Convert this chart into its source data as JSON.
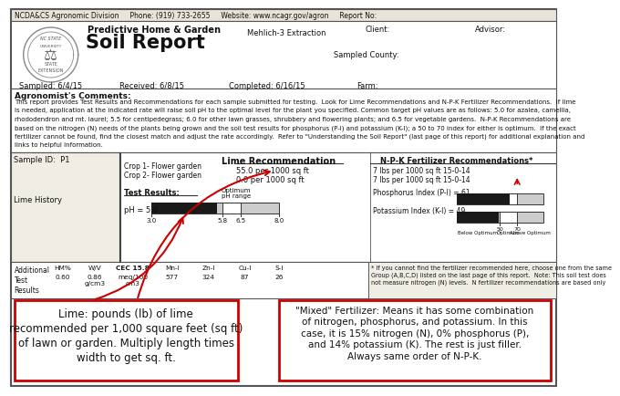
{
  "header_text": "NCDA&CS Agronomic Division     Phone: (919) 733-2655     Website: www.ncagr.gov/agron     Report No:",
  "title_sub": "Predictive Home & Garden",
  "title_main": "Soil Report",
  "extraction": "Mehlich-3 Extraction",
  "client": "Client:",
  "advisor": "Advisor:",
  "sampled_county": "Sampled County:",
  "sampled": "Sampled: 6/4/15",
  "received": "Received: 6/8/15",
  "completed": "Completed: 6/16/15",
  "farm": "Farm:",
  "agronomist_title": "Agronomist's Comments:",
  "agronomist_text1": "This report provides Test Results and Recommendations for each sample submitted for testing.  Look for Lime Recommendations and N-P-K Fertilizer Recommendations.  If lime",
  "agronomist_text2": "is needed, application at the indicated rate will raise soil pH to the optimal level for the plant you specified. Common target pH values are as follows: 5.0 for azalea, camellia,",
  "agronomist_text3": "rhododendron and mt. laurel; 5.5 for centipedegrass; 6.0 for other lawn grasses, shrubbery and flowering plants; and 6.5 for vegetable gardens.  N-P-K Recommendations are",
  "agronomist_text4": "based on the nitrogen (N) needs of the plants being grown and the soil test results for phosphorus (P-I) and potassium (K-I); a 50 to 70 index for either is optimum.  If the exact",
  "agronomist_text5": "fertilizer cannot be found, find the closest match and adjust the rate accordingly.  Refer to \"Understanding the Soil Report\" (last page of this report) for additional explanation and",
  "agronomist_text6": "links to helpful information.",
  "sample_id": "Sample ID:  P1",
  "crop1": "Crop 1- Flower garden",
  "crop2": "Crop 2- Flower garden",
  "lime_history": "Lime History",
  "test_results": "Test Results:",
  "optimum_label1": "Optimum",
  "optimum_label2": "pH range",
  "ph_value": "pH = 5.6",
  "ph_ticks": [
    "3.0",
    "5.8",
    "6.5",
    "8.0"
  ],
  "ph_tick_vals": [
    3.0,
    5.8,
    6.5,
    8.0
  ],
  "ph_min": 3.0,
  "ph_max": 8.0,
  "ph_val": 5.6,
  "ph_opt_lo": 5.8,
  "ph_opt_hi": 6.5,
  "lime_rec_title": "Lime Recommendation",
  "lime_rec1": "55.0 per 1000 sq ft",
  "lime_rec2": "0.0 per 1000 sq ft",
  "npk_title": "N-P-K Fertilizer Recommendations*",
  "npk_rec1": "7 lbs per 1000 sq ft 15-0-14",
  "npk_rec2": "7 lbs per 1000 sq ft 15-0-14",
  "phosphorus_label": "Phosphorus Index (P-I) = 61",
  "potassium_label": "Potassium Index (K-I) = 49",
  "pi_val": 61,
  "ki_val": 49,
  "bar_opt_lo": 50,
  "bar_opt_hi": 70,
  "bar_max": 100,
  "bar_axis_labels": [
    "50",
    "70"
  ],
  "bar_sublabels": [
    "Below Optimum",
    "Optimum",
    "Above Optimum"
  ],
  "additional_test": "Additional\nTest\nResults",
  "add_col_labels": [
    "HM%",
    "W/V",
    "CEC 15.8",
    "Mn-I",
    "Zn-I",
    "Cu-I",
    "S-I"
  ],
  "add_col_vals": [
    "0.60",
    "0.86\ng/cm3",
    "meq/100\ncm3",
    "577",
    "324",
    "87",
    "26"
  ],
  "add_col_sub": [
    "",
    "g/cm3",
    "meq/100\ncm3",
    "",
    "",
    "",
    ""
  ],
  "footnote": "* If you cannot find the fertilizer recommended here, choose one from the same\nGroup (A,B,C,D) listed on the last page of this report.  Note: This soil test does\nnot measure nitrogen (N) levels.  N fertilizer recommendations are based only",
  "lime_callout": "Lime: pounds (lb) of lime\nrecommended per 1,000 square feet (sq ft)\nof lawn or garden. Multiply length times\nwidth to get sq. ft.",
  "mixed_callout": "\"Mixed\" Fertilizer: Means it has some combination\nof nitrogen, phosphorus, and potassium. In this\ncase, it is 15% nitrogen (N), 0% phosphorus (P),\nand 14% potassium (K). The rest is just filler.\nAlways same order of N-P-K.",
  "red": "#cc0000",
  "dark": "#111111",
  "gray_bg": "#e8e4d8",
  "white": "#ffffff",
  "light_bg": "#f0ede4"
}
